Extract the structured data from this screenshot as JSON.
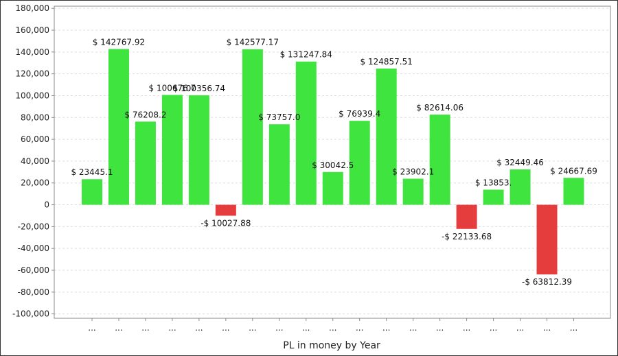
{
  "chart_data": {
    "type": "bar",
    "title": "",
    "xlabel": "PL in money by Year",
    "ylabel": "",
    "ylim": [
      -100000,
      180000
    ],
    "yticks": [
      -100000,
      -80000,
      -60000,
      -40000,
      -20000,
      0,
      20000,
      40000,
      60000,
      80000,
      100000,
      120000,
      140000,
      160000,
      180000
    ],
    "ytick_labels": [
      "-100,000",
      "-80,000",
      "-60,000",
      "-40,000",
      "-20,000",
      "0",
      "20,000",
      "40,000",
      "60,000",
      "80,000",
      "100,000",
      "120,000",
      "140,000",
      "160,000",
      "180,000"
    ],
    "grid": true,
    "legend": "none",
    "categories": [
      "...",
      "...",
      "...",
      "...",
      "...",
      "...",
      "...",
      "...",
      "...",
      "...",
      "...",
      "...",
      "...",
      "...",
      "...",
      "...",
      "...",
      "...",
      "..."
    ],
    "values": [
      23445.1,
      142767.92,
      76208.2,
      100676.7,
      100356.74,
      -10027.88,
      142577.17,
      73757.0,
      131247.84,
      30042.5,
      76939.4,
      124857.51,
      23902.1,
      82614.06,
      -22133.68,
      13853.0,
      32449.46,
      -63812.39,
      24667.69
    ],
    "data_labels": [
      "$ 23445.1",
      "$ 142767.92",
      "$ 76208.2",
      "$ 100676.7",
      "$ 100356.74",
      "-$ 10027.88",
      "$ 142577.17",
      "$ 73757.0",
      "$ 131247.84",
      "$ 30042.5",
      "$ 76939.4",
      "$ 124857.51",
      "$ 23902.1",
      "$ 82614.06",
      "-$ 22133.68",
      "$ 13853.",
      "$ 32449.46",
      "-$ 63812.39",
      "$ 24667.69"
    ],
    "colors": {
      "positive": "#3fe43f",
      "negative": "#e53d3d",
      "grid": "#dddddd",
      "axis": "#888888"
    }
  }
}
